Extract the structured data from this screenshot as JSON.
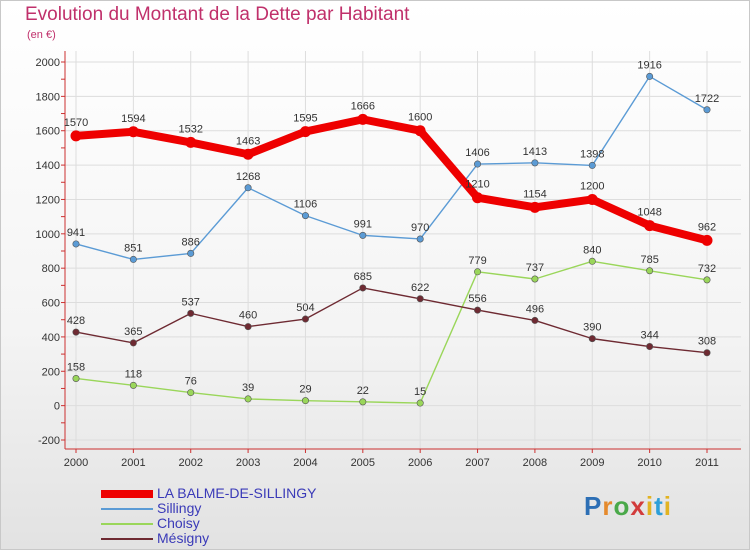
{
  "title": "Evolution du Montant de la Dette par Habitant",
  "unit": "(en €)",
  "logo_text": "Proxiti",
  "chart_data": {
    "type": "line",
    "categories": [
      "2000",
      "2001",
      "2002",
      "2003",
      "2004",
      "2005",
      "2006",
      "2007",
      "2008",
      "2009",
      "2010",
      "2011"
    ],
    "ylim": [
      -200,
      2000
    ],
    "yticks": [
      -200,
      0,
      200,
      400,
      600,
      800,
      1000,
      1200,
      1400,
      1600,
      1800,
      2000
    ],
    "grid": true,
    "legend_position": "bottom-left",
    "series": [
      {
        "name": "Sillingy",
        "color": "#5b9bd5",
        "values": [
          941,
          851,
          886,
          1268,
          1106,
          991,
          970,
          1406,
          1413,
          1398,
          1916,
          1722
        ]
      },
      {
        "name": "Choisy",
        "color": "#9ad65a",
        "values": [
          158,
          118,
          76,
          39,
          29,
          22,
          15,
          779,
          737,
          840,
          785,
          732
        ]
      },
      {
        "name": "Mésigny",
        "color": "#6e2a32",
        "values": [
          428,
          365,
          537,
          460,
          504,
          685,
          622,
          556,
          496,
          390,
          344,
          308
        ]
      },
      {
        "name": "LA BALME-DE-SILLINGY",
        "color": "#ee0000",
        "values": [
          1570,
          1594,
          1532,
          1463,
          1595,
          1666,
          1600,
          1210,
          1154,
          1200,
          1048,
          962
        ]
      }
    ],
    "legend_order": [
      "LA BALME-DE-SILLINGY",
      "Sillingy",
      "Choisy",
      "Mésigny"
    ]
  }
}
